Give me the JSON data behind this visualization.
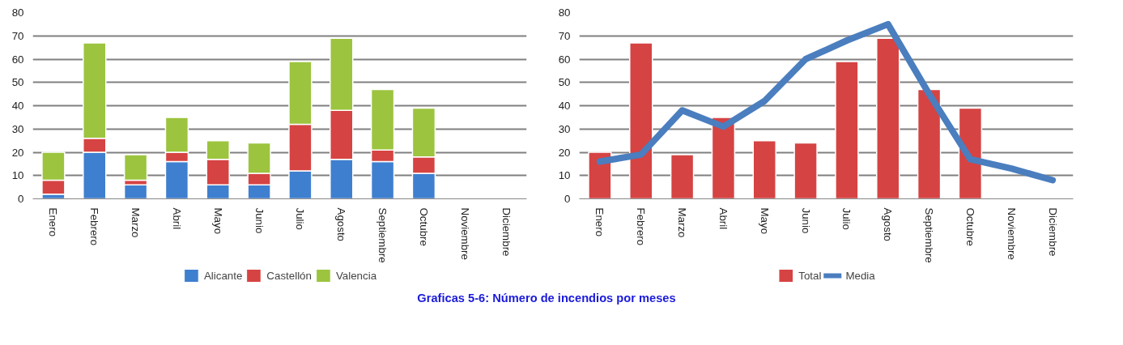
{
  "chart_data": [
    {
      "type": "bar",
      "stacked": true,
      "categories": [
        "Enero",
        "Febrero",
        "Marzo",
        "Abril",
        "Mayo",
        "Junio",
        "Julio",
        "Agosto",
        "Septiembre",
        "Octubre",
        "Noviembre",
        "Diciembre"
      ],
      "series": [
        {
          "name": "Alicante",
          "color": "#3f7fcf",
          "values": [
            2,
            20,
            6,
            16,
            6,
            6,
            12,
            17,
            16,
            11,
            null,
            null
          ]
        },
        {
          "name": "Castellón",
          "color": "#d64343",
          "values": [
            6,
            6,
            2,
            4,
            11,
            5,
            20,
            21,
            5,
            7,
            null,
            null
          ]
        },
        {
          "name": "Valencia",
          "color": "#9cc43f",
          "values": [
            12,
            41,
            11,
            15,
            8,
            13,
            27,
            31,
            26,
            21,
            null,
            null
          ]
        }
      ],
      "ylim": [
        0,
        80
      ],
      "yticks": [
        0,
        10,
        20,
        30,
        40,
        50,
        60,
        70,
        80
      ],
      "grid": "y",
      "legend": "bottom",
      "annotations": [
        "Graficas 5-6: Número de incendios por meses"
      ]
    },
    {
      "type": "bar",
      "categories": [
        "Enero",
        "Febrero",
        "Marzo",
        "Abril",
        "Mayo",
        "Junio",
        "Julio",
        "Agosto",
        "Septiembre",
        "Octubre",
        "Noviembre",
        "Diciembre"
      ],
      "series": [
        {
          "name": "Total",
          "color": "#d64343",
          "values": [
            20,
            67,
            19,
            35,
            25,
            24,
            59,
            69,
            47,
            39,
            null,
            null
          ]
        },
        {
          "name": "Media",
          "type": "line",
          "color": "#4a7ebf",
          "values": [
            16,
            19,
            38,
            31,
            42,
            60,
            68,
            75,
            45,
            17,
            13,
            8
          ]
        }
      ],
      "ylim": [
        0,
        80
      ],
      "yticks": [
        0,
        10,
        20,
        30,
        40,
        50,
        60,
        70,
        80
      ],
      "grid": "y",
      "legend": "bottom"
    }
  ]
}
